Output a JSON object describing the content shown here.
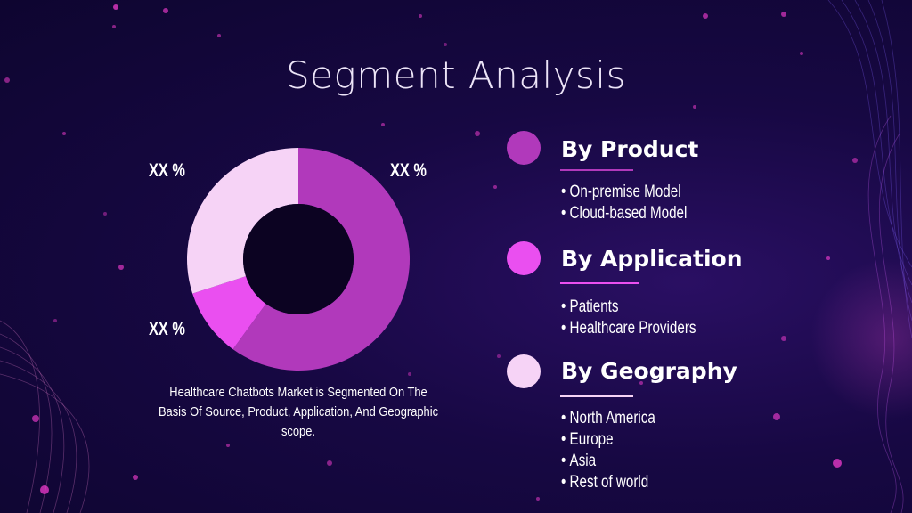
{
  "title": "Segment Analysis",
  "chart_data": {
    "type": "pie",
    "donut": true,
    "slices": [
      {
        "label": "XX %",
        "value": 60,
        "color": "#b139bb"
      },
      {
        "label": "XX %",
        "value": 10,
        "color": "#ea4ff0"
      },
      {
        "label": "XX %",
        "value": 30,
        "color": "#f6d3f6"
      }
    ]
  },
  "caption": "Healthcare Chatbots Market is Segmented On The Basis Of Source, Product, Application, And Geographic scope.",
  "segments": [
    {
      "title": "By Product",
      "color": "#b139bb",
      "items": [
        "On-premise Model",
        "Cloud-based Model"
      ]
    },
    {
      "title": "By Application",
      "color": "#ea4ff0",
      "items": [
        "Patients",
        "Healthcare Providers"
      ]
    },
    {
      "title": "By Geography",
      "color": "#f6d3f6",
      "items": [
        "North America",
        "Europe",
        "Asia",
        "Rest of world"
      ]
    }
  ]
}
